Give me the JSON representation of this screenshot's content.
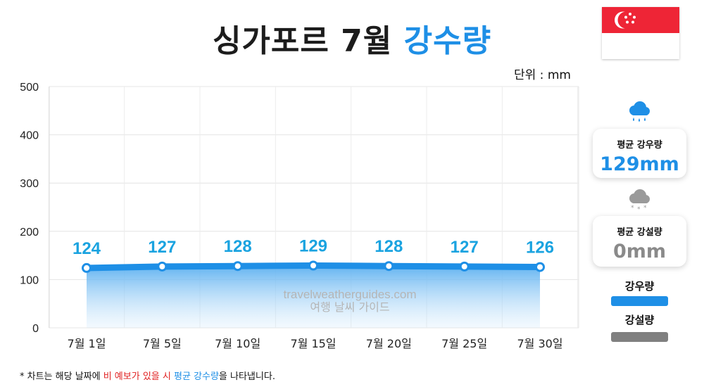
{
  "title": {
    "main": "싱가포르 7월",
    "highlight": "강수량"
  },
  "unit_label": "단위 : mm",
  "watermark": {
    "line1": "travelweatherguides.com",
    "line2": "여행 날씨 가이드"
  },
  "summary": {
    "rain_label": "평균 강우량",
    "rain_value": "129mm",
    "snow_label": "평균 강설량",
    "snow_value": "0mm"
  },
  "legend": [
    {
      "label": "강우량",
      "color": "#1e8fe6"
    },
    {
      "label": "강설량",
      "color": "#808080"
    }
  ],
  "footnote": {
    "part1": "* 차트는 해당 날짜에 ",
    "part2": "비 예보가 있을 시",
    "part3": " ",
    "part4": "평균 강수량",
    "part5": "을 나타냅니다."
  },
  "icons": {
    "rain": "rain-cloud-icon",
    "snow": "snow-cloud-icon",
    "flag": "singapore-flag-icon"
  },
  "chart_data": {
    "type": "area",
    "categories": [
      "7월 1일",
      "7월 5일",
      "7월 10일",
      "7월 15일",
      "7월 20일",
      "7월 25일",
      "7월 30일"
    ],
    "series": [
      {
        "values": [
          124,
          127,
          128,
          129,
          128,
          127,
          126
        ],
        "color": "#1e8fe6"
      }
    ],
    "y_ticks": [
      0,
      100,
      200,
      300,
      400,
      500
    ],
    "ylim": [
      0,
      500
    ],
    "grid": true,
    "data_label_color": "#1aa3e0"
  }
}
